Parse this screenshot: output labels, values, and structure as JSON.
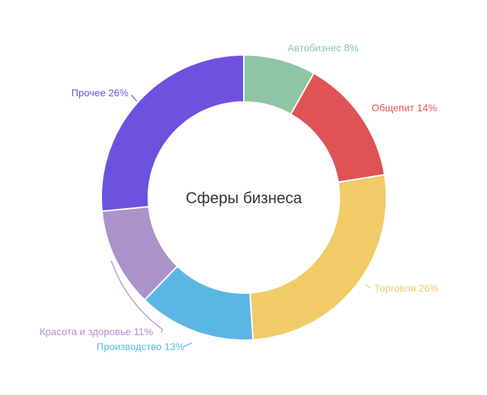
{
  "chart_data": {
    "type": "pie",
    "title": "Сферы бизнеса",
    "donut": true,
    "slices": [
      {
        "label": "Автобизнес",
        "value": 8,
        "color": "#8fc4a5"
      },
      {
        "label": "Общепит",
        "value": 14,
        "color": "#df5355"
      },
      {
        "label": "Торговля",
        "value": 26,
        "color": "#f0cb68"
      },
      {
        "label": "Производство",
        "value": 13,
        "color": "#5cb6e4"
      },
      {
        "label": "Красота и здоровье",
        "value": 11,
        "color": "#ab92c8"
      },
      {
        "label": "Прочее",
        "value": 26,
        "color": "#6c52df"
      }
    ],
    "labels_text": [
      "Автобизнес 8%",
      "Общепит 14%",
      "Торговля 26%",
      "Производство 13%",
      "Красота и здоровье 11%",
      "Прочее 26%"
    ]
  }
}
